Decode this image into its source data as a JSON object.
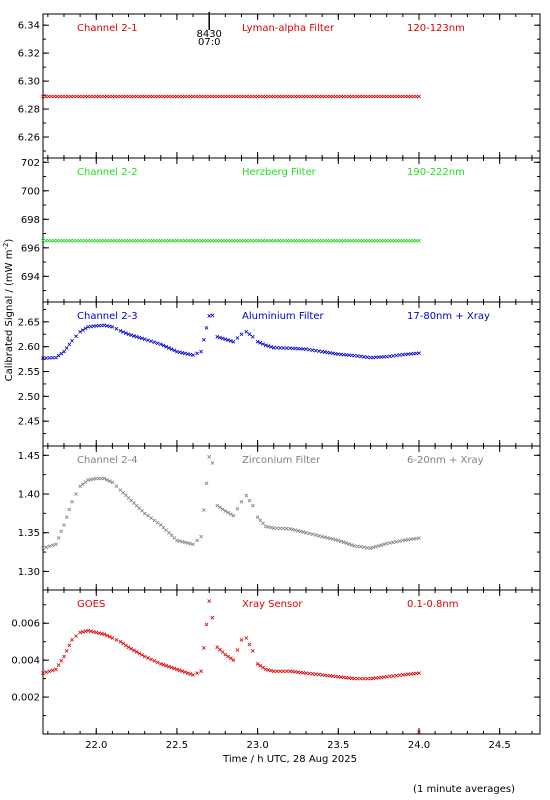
{
  "figure": {
    "ylabel_main": "Calibrated Signal / (mW m",
    "ylabel_sup": "-2",
    "ylabel_close": ")",
    "xlabel": "Time / h UTC, 28 Aug 2025",
    "footnote": "(1 minute averages)",
    "marker_top": "8430",
    "marker_bottom": "07:0"
  },
  "chart_data": [
    {
      "type": "scatter",
      "channel": "Channel 2-1",
      "filter": "Lyman-alpha Filter",
      "band": "120-123nm",
      "color": "#dd0000",
      "xlim": [
        21.67,
        24.75
      ],
      "ylim": [
        6.245,
        6.348
      ],
      "yticks": [
        6.26,
        6.28,
        6.3,
        6.32,
        6.34
      ],
      "ytick_labels": [
        "6.26",
        "6.28",
        "6.30",
        "6.32",
        "6.34"
      ],
      "x": [
        21.67,
        22.0,
        22.5,
        23.0,
        23.5,
        24.0
      ],
      "y": [
        6.289,
        6.289,
        6.289,
        6.289,
        6.289,
        6.289
      ]
    },
    {
      "type": "scatter",
      "channel": "Channel 2-2",
      "filter": "Herzberg Filter",
      "band": "190-222nm",
      "color": "#22dd22",
      "xlim": [
        21.67,
        24.75
      ],
      "ylim": [
        692.2,
        702.3
      ],
      "yticks": [
        694,
        696,
        698,
        700,
        702
      ],
      "ytick_labels": [
        "694",
        "696",
        "698",
        "700",
        "702"
      ],
      "x": [
        21.67,
        22.0,
        22.5,
        23.0,
        23.5,
        24.0
      ],
      "y": [
        696.5,
        696.5,
        696.5,
        696.5,
        696.5,
        696.5
      ]
    },
    {
      "type": "scatter",
      "channel": "Channel 2-3",
      "filter": "Aluminium Filter",
      "band": "17-80nm + Xray",
      "color": "#0000cc",
      "xlim": [
        21.67,
        24.75
      ],
      "ylim": [
        2.4,
        2.69
      ],
      "yticks": [
        2.45,
        2.5,
        2.55,
        2.6,
        2.65
      ],
      "ytick_labels": [
        "2.45",
        "2.50",
        "2.55",
        "2.60",
        "2.65"
      ],
      "x": [
        21.67,
        21.75,
        21.8,
        21.85,
        21.9,
        21.95,
        22.0,
        22.05,
        22.1,
        22.15,
        22.2,
        22.3,
        22.4,
        22.5,
        22.6,
        22.65,
        22.7,
        22.72,
        22.75,
        22.8,
        22.85,
        22.9,
        22.93,
        22.97,
        23.0,
        23.05,
        23.1,
        23.2,
        23.3,
        23.4,
        23.5,
        23.6,
        23.7,
        23.8,
        23.9,
        24.0
      ],
      "y": [
        2.577,
        2.578,
        2.59,
        2.612,
        2.63,
        2.64,
        2.642,
        2.643,
        2.64,
        2.632,
        2.625,
        2.615,
        2.605,
        2.59,
        2.583,
        2.59,
        2.662,
        2.663,
        2.62,
        2.615,
        2.61,
        2.625,
        2.63,
        2.62,
        2.61,
        2.603,
        2.598,
        2.597,
        2.595,
        2.59,
        2.585,
        2.582,
        2.578,
        2.58,
        2.584,
        2.587
      ]
    },
    {
      "type": "scatter",
      "channel": "Channel 2-4",
      "filter": "Zirconium Filter",
      "band": "6-20nm + Xray",
      "color": "#808080",
      "xlim": [
        21.67,
        24.75
      ],
      "ylim": [
        1.276,
        1.462
      ],
      "yticks": [
        1.3,
        1.35,
        1.4,
        1.45
      ],
      "ytick_labels": [
        "1.30",
        "1.35",
        "1.40",
        "1.45"
      ],
      "x": [
        21.67,
        21.75,
        21.8,
        21.85,
        21.9,
        21.95,
        22.0,
        22.05,
        22.1,
        22.15,
        22.2,
        22.3,
        22.4,
        22.5,
        22.6,
        22.65,
        22.7,
        22.72,
        22.75,
        22.8,
        22.85,
        22.9,
        22.93,
        22.97,
        23.0,
        23.05,
        23.1,
        23.2,
        23.3,
        23.4,
        23.5,
        23.6,
        23.7,
        23.8,
        23.9,
        24.0
      ],
      "y": [
        1.33,
        1.335,
        1.36,
        1.39,
        1.41,
        1.418,
        1.42,
        1.42,
        1.415,
        1.405,
        1.395,
        1.375,
        1.36,
        1.34,
        1.335,
        1.345,
        1.448,
        1.44,
        1.385,
        1.378,
        1.372,
        1.39,
        1.398,
        1.385,
        1.37,
        1.358,
        1.356,
        1.355,
        1.35,
        1.345,
        1.34,
        1.333,
        1.33,
        1.336,
        1.34,
        1.343
      ]
    },
    {
      "type": "scatter",
      "channel": "GOES",
      "filter": "Xray Sensor",
      "band": "0.1-0.8nm",
      "color": "#dd0000",
      "xlim": [
        21.67,
        24.75
      ],
      "ylim": [
        0.0,
        0.0078
      ],
      "yticks": [
        0.002,
        0.004,
        0.006
      ],
      "ytick_labels": [
        "0.002",
        "0.004",
        "0.006"
      ],
      "x": [
        21.67,
        21.75,
        21.8,
        21.85,
        21.9,
        21.95,
        22.0,
        22.05,
        22.1,
        22.15,
        22.2,
        22.3,
        22.4,
        22.5,
        22.6,
        22.65,
        22.7,
        22.72,
        22.75,
        22.8,
        22.85,
        22.9,
        22.93,
        22.97,
        23.0,
        23.05,
        23.1,
        23.2,
        23.3,
        23.4,
        23.5,
        23.6,
        23.7,
        23.8,
        23.9,
        24.0,
        24.0
      ],
      "y": [
        0.0033,
        0.0035,
        0.0042,
        0.0051,
        0.0055,
        0.0056,
        0.0055,
        0.0054,
        0.0052,
        0.005,
        0.0047,
        0.0042,
        0.0038,
        0.0035,
        0.0032,
        0.0034,
        0.0072,
        0.0063,
        0.0047,
        0.0043,
        0.004,
        0.0051,
        0.0052,
        0.0045,
        0.0038,
        0.0035,
        0.0034,
        0.0034,
        0.0033,
        0.0032,
        0.0031,
        0.003,
        0.003,
        0.0031,
        0.0032,
        0.0033,
        0.0001
      ]
    }
  ],
  "x_axis": {
    "ticks": [
      22.0,
      22.5,
      23.0,
      23.5,
      24.0,
      24.5
    ],
    "tick_labels": [
      "22.0",
      "22.5",
      "23.0",
      "23.5",
      "24.0",
      "24.5"
    ],
    "marker_x": 22.7
  }
}
